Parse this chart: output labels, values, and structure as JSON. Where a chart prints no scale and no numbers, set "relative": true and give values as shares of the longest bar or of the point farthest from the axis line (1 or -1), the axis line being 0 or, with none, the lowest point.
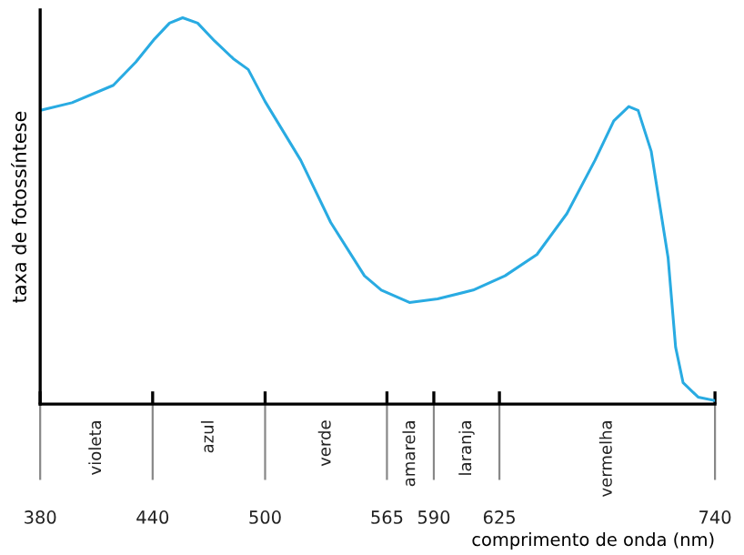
{
  "chart_data": {
    "type": "line",
    "relative": true,
    "ylabel": "taxa de fotossíntese",
    "xlabel": "comprimento de onda (nm)",
    "x": [
      380,
      397,
      419,
      431,
      441,
      449,
      456,
      464,
      473,
      483,
      491,
      500,
      519,
      535,
      553,
      562,
      577,
      592,
      611,
      628,
      645,
      661,
      676,
      686,
      694,
      699,
      706,
      715,
      719,
      723,
      731,
      740
    ],
    "series": [
      {
        "color": "#29abe2",
        "values": [
          0.76,
          0.78,
          0.825,
          0.885,
          0.945,
          0.986,
          1.0,
          0.986,
          0.94,
          0.894,
          0.866,
          0.783,
          0.631,
          0.47,
          0.332,
          0.295,
          0.263,
          0.272,
          0.295,
          0.332,
          0.387,
          0.493,
          0.631,
          0.733,
          0.77,
          0.76,
          0.654,
          0.378,
          0.147,
          0.055,
          0.018,
          0.009
        ]
      }
    ],
    "xlim": [
      380,
      740
    ],
    "xticks": [
      380,
      440,
      500,
      565,
      590,
      625,
      740
    ],
    "annotations": [
      "violeta",
      "azul",
      "verde",
      "amarela",
      "laranja",
      "vermelha"
    ],
    "grid": false,
    "legend": false,
    "marker": "none",
    "line_style": "solid"
  }
}
